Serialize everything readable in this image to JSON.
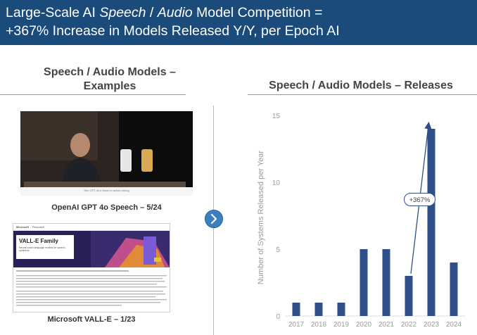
{
  "header": {
    "title_pre": "Large-Scale AI ",
    "title_em1": "Speech",
    "title_sep": " / ",
    "title_em2": "Audio",
    "title_post": " Model Competition =",
    "line2": "+367% Increase in Models Released Y/Y, per Epoch AI"
  },
  "left": {
    "title_line1": "Speech / Audio Models –",
    "title_line2": "Examples",
    "example1": {
      "caption": "OpenAI GPT 4o Speech – 5/24",
      "subcaption": "See GPT-4o's vision in action during"
    },
    "example2": {
      "caption": "Microsoft VALL-E – 1/23",
      "banner_title": "VALL-E Family",
      "banner_sub": "Neural codec language models for speech synthesis",
      "nav_brand": "Microsoft",
      "nav_section": "Research"
    }
  },
  "right": {
    "title": "Speech / Audio Models – Releases"
  },
  "colors": {
    "header_bg": "#1b4b7a",
    "bar": "#2e4f8a",
    "button": "#3c7fc0"
  },
  "icons": {
    "next": "chevron-right-icon"
  },
  "chart_data": {
    "type": "bar",
    "categories": [
      "2017",
      "2018",
      "2019",
      "2020",
      "2021",
      "2022",
      "2023",
      "2024"
    ],
    "values": [
      1,
      1,
      1,
      5,
      5,
      3,
      14,
      4
    ],
    "title": "Speech / Audio Models – Releases",
    "xlabel": "",
    "ylabel": "Number of Systems Released per Year",
    "ylim": [
      0,
      15
    ],
    "yticks": [
      0,
      5,
      10,
      15
    ],
    "grid": false,
    "annotation": {
      "text": "+367%",
      "from_category": "2022",
      "to_category": "2023"
    }
  }
}
